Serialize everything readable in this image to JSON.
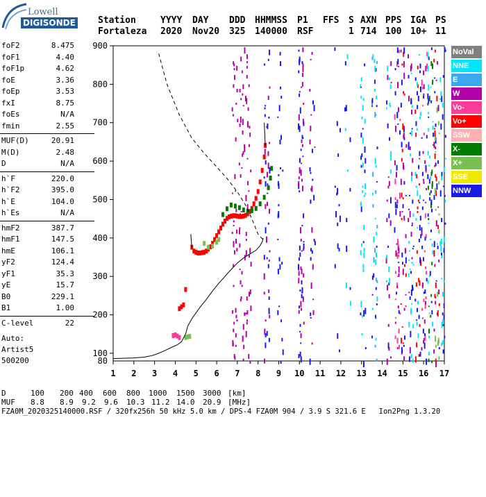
{
  "logo": {
    "line1": "Lowell",
    "line2": "DIGISONDE"
  },
  "header": {
    "labels": [
      "Station",
      "YYYY",
      "DAY",
      "DDD",
      "HHMMSS",
      "P1",
      "FFS",
      "S",
      "AXN",
      "PPS",
      "IGA",
      "PS"
    ],
    "values": [
      "Fortaleza",
      "2020",
      "Nov20",
      "325",
      "140000",
      "RSF",
      "1",
      "714",
      "100",
      "10+",
      "11"
    ]
  },
  "params": {
    "group1": [
      {
        "label": "foF2",
        "value": "8.475"
      },
      {
        "label": "foF1",
        "value": "4.40"
      },
      {
        "label": "foF1p",
        "value": "4.62"
      },
      {
        "label": "foE",
        "value": "3.36"
      },
      {
        "label": "foEp",
        "value": "3.53"
      },
      {
        "label": "fxI",
        "value": "8.75"
      },
      {
        "label": "foEs",
        "value": "N/A"
      },
      {
        "label": "fmin",
        "value": "2.55"
      }
    ],
    "group2": [
      {
        "label": "MUF(D)",
        "value": "20.91"
      },
      {
        "label": "M(D)",
        "value": "2.48"
      },
      {
        "label": "D",
        "value": "N/A"
      }
    ],
    "group3": [
      {
        "label": "h`F",
        "value": "220.0"
      },
      {
        "label": "h`F2",
        "value": "395.0"
      },
      {
        "label": "h`E",
        "value": "104.0"
      },
      {
        "label": "h`Es",
        "value": "N/A"
      }
    ],
    "group4": [
      {
        "label": "hmF2",
        "value": "387.7"
      },
      {
        "label": "hmF1",
        "value": "147.5"
      },
      {
        "label": "hmE",
        "value": "106.1"
      },
      {
        "label": "yF2",
        "value": "124.4"
      },
      {
        "label": "yF1",
        "value": "35.3"
      },
      {
        "label": "yE",
        "value": "15.7"
      },
      {
        "label": "B0",
        "value": "229.1"
      },
      {
        "label": "B1",
        "value": "1.00"
      }
    ],
    "group5": [
      {
        "label": "C-level",
        "value": "22"
      }
    ],
    "auto": [
      "Auto:",
      "Artist5",
      "500200"
    ]
  },
  "legend": [
    {
      "label": "NoVal",
      "color": "#808080"
    },
    {
      "label": "NNE",
      "color": "#00e5ff"
    },
    {
      "label": "E",
      "color": "#3aa8f0"
    },
    {
      "label": "W",
      "color": "#b000a8"
    },
    {
      "label": "Vo-",
      "color": "#ff3c9a"
    },
    {
      "label": "Vo+",
      "color": "#ff0000"
    },
    {
      "label": "SSW",
      "color": "#ffb0b0"
    },
    {
      "label": "X-",
      "color": "#007a00"
    },
    {
      "label": "X+",
      "color": "#7ac050"
    },
    {
      "label": "SSE",
      "color": "#f0e800"
    },
    {
      "label": "NNW",
      "color": "#1a1ae6"
    }
  ],
  "footer": {
    "d_label": "D",
    "d_values": [
      "100",
      "200",
      "400",
      "600",
      "800",
      "1000",
      "1500",
      "3000",
      "[km]"
    ],
    "muf_label": "MUF",
    "muf_values": [
      "8.8",
      "8.9",
      "9.2",
      "9.6",
      "10.3",
      "11.2",
      "14.0",
      "20.9",
      "[MHz]"
    ],
    "info": "FZA0M_2020325140000.RSF / 320fx256h 50 kHz 5.0 km / DPS-4 FZA0M 904 / 3.9 S 321.6 E   Ion2Png 1.3.20"
  },
  "chart_data": {
    "type": "scatter",
    "title": "",
    "xlabel": "",
    "ylabel": "",
    "xlim": [
      1,
      17
    ],
    "ylim": [
      80,
      900
    ],
    "xticks": [
      1,
      2,
      3,
      4,
      5,
      6,
      7,
      8,
      9,
      10,
      11,
      12,
      13,
      14,
      15,
      16,
      17
    ],
    "yticks": [
      100,
      200,
      300,
      400,
      500,
      600,
      700,
      800,
      900
    ],
    "series": [
      {
        "name": "Vo+",
        "color": "#ff0000",
        "points": [
          [
            4.8,
            375
          ],
          [
            4.9,
            365
          ],
          [
            5.0,
            362
          ],
          [
            5.1,
            360
          ],
          [
            5.2,
            360
          ],
          [
            5.3,
            361
          ],
          [
            5.4,
            362
          ],
          [
            5.5,
            365
          ],
          [
            5.6,
            370
          ],
          [
            5.7,
            376
          ],
          [
            5.8,
            385
          ],
          [
            5.9,
            395
          ],
          [
            6.0,
            405
          ],
          [
            6.1,
            415
          ],
          [
            6.2,
            425
          ],
          [
            6.3,
            435
          ],
          [
            6.4,
            443
          ],
          [
            6.5,
            450
          ],
          [
            6.6,
            454
          ],
          [
            6.7,
            456
          ],
          [
            6.8,
            457
          ],
          [
            6.9,
            457
          ],
          [
            7.0,
            456
          ],
          [
            7.1,
            455
          ],
          [
            7.2,
            455
          ],
          [
            7.3,
            456
          ],
          [
            7.4,
            458
          ],
          [
            7.5,
            462
          ],
          [
            7.6,
            468
          ],
          [
            7.7,
            476
          ],
          [
            7.8,
            488
          ],
          [
            7.9,
            502
          ],
          [
            8.0,
            520
          ],
          [
            8.1,
            545
          ],
          [
            8.2,
            575
          ],
          [
            8.3,
            610
          ],
          [
            8.35,
            640
          ],
          [
            4.2,
            215
          ],
          [
            4.3,
            220
          ],
          [
            4.4,
            225
          ],
          [
            4.5,
            265
          ]
        ]
      },
      {
        "name": "X-",
        "color": "#007a00",
        "points": [
          [
            6.3,
            460
          ],
          [
            6.5,
            475
          ],
          [
            6.7,
            485
          ],
          [
            6.9,
            482
          ],
          [
            7.1,
            478
          ],
          [
            7.3,
            472
          ],
          [
            7.5,
            468
          ],
          [
            7.7,
            470
          ],
          [
            7.9,
            476
          ],
          [
            8.1,
            488
          ],
          [
            8.3,
            505
          ],
          [
            8.5,
            530
          ],
          [
            8.6,
            555
          ],
          [
            8.65,
            580
          ]
        ]
      },
      {
        "name": "X+",
        "color": "#7ac050",
        "points": [
          [
            5.4,
            385
          ],
          [
            5.6,
            375
          ],
          [
            5.8,
            378
          ],
          [
            6.0,
            388
          ],
          [
            6.1,
            395
          ],
          [
            4.5,
            140
          ],
          [
            4.6,
            142
          ],
          [
            4.7,
            143
          ]
        ]
      },
      {
        "name": "Vo-",
        "color": "#ff3c9a",
        "points": [
          [
            3.9,
            145
          ],
          [
            4.0,
            147
          ],
          [
            4.1,
            144
          ],
          [
            4.2,
            140
          ]
        ]
      },
      {
        "name": "O-trace",
        "color": "#000000",
        "points": [
          [
            1.0,
            86
          ],
          [
            1.5,
            87
          ],
          [
            2.0,
            88
          ],
          [
            2.5,
            90
          ],
          [
            2.8,
            93
          ],
          [
            3.0,
            96
          ],
          [
            3.2,
            100
          ],
          [
            3.5,
            107
          ],
          [
            3.8,
            115
          ],
          [
            4.1,
            122
          ],
          [
            4.3,
            130
          ],
          [
            4.5,
            150
          ],
          [
            4.6,
            170
          ],
          [
            4.8,
            190
          ],
          [
            5.0,
            205
          ],
          [
            5.2,
            220
          ],
          [
            5.5,
            240
          ],
          [
            5.8,
            262
          ],
          [
            6.1,
            282
          ],
          [
            6.4,
            300
          ],
          [
            6.7,
            318
          ],
          [
            7.0,
            335
          ],
          [
            7.3,
            348
          ],
          [
            7.6,
            358
          ],
          [
            7.9,
            368
          ],
          [
            8.1,
            380
          ],
          [
            8.2,
            390
          ],
          [
            8.25,
            400
          ]
        ]
      },
      {
        "name": "model",
        "color": "#000000",
        "points": [
          [
            3.2,
            880
          ],
          [
            3.6,
            800
          ],
          [
            4.2,
            720
          ],
          [
            4.8,
            660
          ],
          [
            5.4,
            620
          ],
          [
            6.0,
            585
          ],
          [
            6.5,
            555
          ],
          [
            7.0,
            520
          ],
          [
            7.4,
            485
          ],
          [
            7.7,
            450
          ],
          [
            8.0,
            410
          ],
          [
            8.25,
            395
          ]
        ]
      }
    ]
  }
}
